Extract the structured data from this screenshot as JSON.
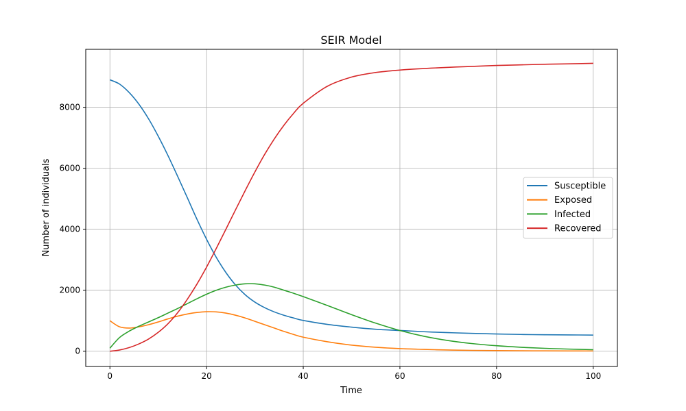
{
  "chart_data": {
    "type": "line",
    "title": "SEIR Model",
    "xlabel": "Time",
    "ylabel": "Number of individuals",
    "xlim": [
      -5,
      105
    ],
    "ylim": [
      -500,
      9900
    ],
    "xticks": [
      0,
      20,
      40,
      60,
      80,
      100
    ],
    "xtick_labels": [
      "0",
      "20",
      "40",
      "60",
      "80",
      "100"
    ],
    "yticks": [
      0,
      2000,
      4000,
      6000,
      8000
    ],
    "ytick_labels": [
      "0",
      "2000",
      "4000",
      "6000",
      "8000"
    ],
    "grid": true,
    "legend_position": "center-right",
    "x": [
      0,
      2,
      4,
      6,
      8,
      10,
      12,
      14,
      16,
      18,
      20,
      22,
      24,
      26,
      28,
      30,
      32,
      34,
      36,
      38,
      40,
      45,
      50,
      55,
      60,
      65,
      70,
      75,
      80,
      85,
      90,
      95,
      100
    ],
    "series": [
      {
        "name": "Susceptible",
        "color": "#1f77b4",
        "values": [
          8900,
          8760,
          8480,
          8100,
          7620,
          7050,
          6420,
          5740,
          5040,
          4330,
          3670,
          3080,
          2580,
          2170,
          1850,
          1610,
          1430,
          1290,
          1180,
          1090,
          1010,
          880,
          790,
          720,
          680,
          640,
          610,
          585,
          565,
          550,
          540,
          535,
          530
        ]
      },
      {
        "name": "Exposed",
        "color": "#ff7f0e",
        "values": [
          1000,
          800,
          760,
          800,
          870,
          960,
          1060,
          1150,
          1220,
          1270,
          1295,
          1290,
          1250,
          1180,
          1090,
          980,
          870,
          760,
          650,
          550,
          460,
          310,
          200,
          130,
          85,
          60,
          40,
          28,
          20,
          15,
          12,
          10,
          8
        ]
      },
      {
        "name": "Infected",
        "color": "#2ca02c",
        "values": [
          100,
          450,
          660,
          820,
          960,
          1100,
          1250,
          1400,
          1560,
          1720,
          1870,
          2000,
          2100,
          2170,
          2210,
          2210,
          2170,
          2100,
          2000,
          1900,
          1790,
          1500,
          1200,
          920,
          680,
          490,
          350,
          250,
          180,
          130,
          95,
          70,
          50
        ]
      },
      {
        "name": "Recovered",
        "color": "#d62728",
        "values": [
          0,
          40,
          120,
          240,
          400,
          620,
          900,
          1260,
          1700,
          2200,
          2760,
          3370,
          4000,
          4640,
          5270,
          5880,
          6450,
          6960,
          7410,
          7800,
          8130,
          8690,
          8990,
          9140,
          9220,
          9270,
          9310,
          9340,
          9370,
          9390,
          9410,
          9425,
          9440
        ]
      }
    ]
  }
}
